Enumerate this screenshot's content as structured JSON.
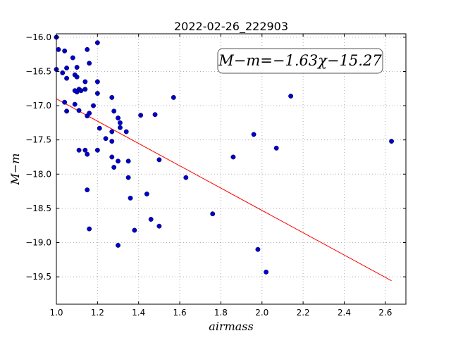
{
  "chart_data": {
    "type": "scatter",
    "title": "2022-02-26_222903",
    "xlabel": "airmass",
    "ylabel": "M−m",
    "xlim": [
      1.0,
      2.7
    ],
    "ylim": [
      -15.95,
      -19.9
    ],
    "x_ticks": [
      1.0,
      1.2,
      1.4,
      1.6,
      1.8,
      2.0,
      2.2,
      2.4,
      2.6
    ],
    "x_tick_labels": [
      "1.0",
      "1.2",
      "1.4",
      "1.6",
      "1.8",
      "2.0",
      "2.2",
      "2.4",
      "2.6"
    ],
    "y_ticks": [
      -16.0,
      -16.5,
      -17.0,
      -17.5,
      -18.0,
      -18.5,
      -19.0,
      -19.5
    ],
    "y_tick_labels": [
      "−16.0",
      "−16.5",
      "−17.0",
      "−17.5",
      "−18.0",
      "−18.5",
      "−19.0",
      "−19.5"
    ],
    "grid": true,
    "annotation": "M−m=−1.63χ−15.27",
    "points_color": "#0000cc",
    "fit_color": "#ff0000",
    "fit": {
      "slope": -1.63,
      "intercept": -15.27,
      "x_range": [
        1.0,
        2.63
      ]
    },
    "points": [
      [
        1.0,
        -16.0
      ],
      [
        1.01,
        -16.18
      ],
      [
        1.04,
        -16.2
      ],
      [
        1.0,
        -16.47
      ],
      [
        1.03,
        -16.52
      ],
      [
        1.05,
        -16.45
      ],
      [
        1.05,
        -16.6
      ],
      [
        1.08,
        -16.3
      ],
      [
        1.09,
        -16.55
      ],
      [
        1.1,
        -16.44
      ],
      [
        1.1,
        -16.58
      ],
      [
        1.1,
        -16.8
      ],
      [
        1.11,
        -16.76
      ],
      [
        1.12,
        -16.78
      ],
      [
        1.09,
        -16.78
      ],
      [
        1.14,
        -16.76
      ],
      [
        1.14,
        -16.65
      ],
      [
        1.15,
        -16.18
      ],
      [
        1.16,
        -16.38
      ],
      [
        1.2,
        -16.08
      ],
      [
        1.2,
        -16.65
      ],
      [
        1.2,
        -16.82
      ],
      [
        1.04,
        -16.95
      ],
      [
        1.09,
        -16.98
      ],
      [
        1.05,
        -17.08
      ],
      [
        1.11,
        -17.07
      ],
      [
        1.15,
        -17.15
      ],
      [
        1.16,
        -17.11
      ],
      [
        1.18,
        -17.0
      ],
      [
        1.27,
        -16.88
      ],
      [
        1.28,
        -17.08
      ],
      [
        1.3,
        -17.18
      ],
      [
        1.31,
        -17.25
      ],
      [
        1.31,
        -17.32
      ],
      [
        1.21,
        -17.33
      ],
      [
        1.24,
        -17.48
      ],
      [
        1.27,
        -17.38
      ],
      [
        1.27,
        -17.52
      ],
      [
        1.34,
        -17.38
      ],
      [
        1.41,
        -17.14
      ],
      [
        1.48,
        -17.13
      ],
      [
        1.57,
        -16.88
      ],
      [
        1.11,
        -17.65
      ],
      [
        1.14,
        -17.65
      ],
      [
        1.15,
        -17.71
      ],
      [
        1.2,
        -17.65
      ],
      [
        1.27,
        -17.75
      ],
      [
        1.3,
        -17.81
      ],
      [
        1.35,
        -17.81
      ],
      [
        1.28,
        -17.9
      ],
      [
        1.35,
        -18.05
      ],
      [
        1.5,
        -17.79
      ],
      [
        1.63,
        -18.05
      ],
      [
        1.15,
        -18.23
      ],
      [
        1.36,
        -18.35
      ],
      [
        1.44,
        -18.29
      ],
      [
        1.76,
        -18.58
      ],
      [
        1.46,
        -18.66
      ],
      [
        1.5,
        -18.76
      ],
      [
        1.38,
        -18.82
      ],
      [
        1.16,
        -18.8
      ],
      [
        1.3,
        -19.04
      ],
      [
        1.86,
        -17.75
      ],
      [
        1.96,
        -17.42
      ],
      [
        2.07,
        -17.62
      ],
      [
        2.14,
        -16.86
      ],
      [
        2.63,
        -17.52
      ],
      [
        1.98,
        -19.1
      ],
      [
        2.02,
        -19.43
      ]
    ]
  }
}
